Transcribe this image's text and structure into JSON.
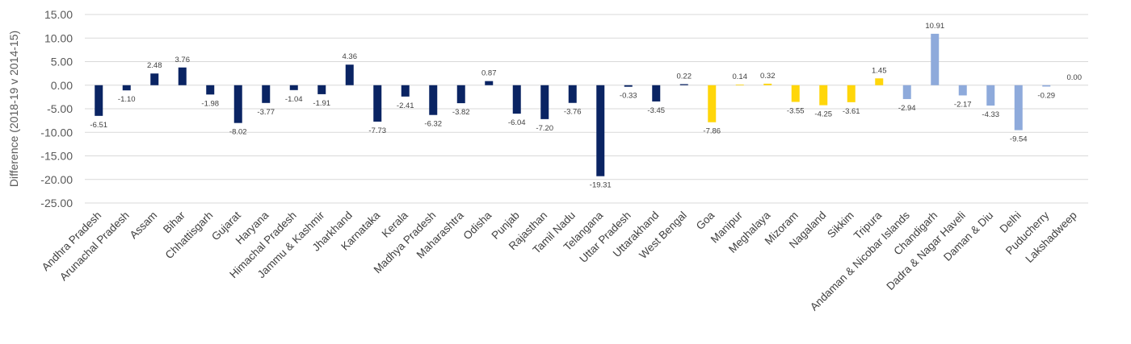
{
  "chart_data": {
    "type": "bar",
    "ylabel": "Difference (2018-19 v 2014-15)",
    "ylim": [
      -25,
      15
    ],
    "y_ticks": [
      15,
      10,
      5,
      0,
      -5,
      -10,
      -15,
      -20,
      -25
    ],
    "y_tick_labels": [
      "15.00",
      "10.00",
      "5.00",
      "0.00",
      "-5.00",
      "-10.00",
      "-15.00",
      "-20.00",
      "-25.00"
    ],
    "grid": true,
    "colors": {
      "states": "#0a2463",
      "northeast_goa": "#ffd60a",
      "union_territories": "#8eaadb"
    },
    "categories": [
      "Andhra Pradesh",
      "Arunachal Pradesh",
      "Assam",
      "Bihar",
      "Chhattisgarh",
      "Gujarat",
      "Haryana",
      "Himachal Pradesh",
      "Jammu & Kashmir",
      "Jharkhand",
      "Karnataka",
      "Kerala",
      "Madhya Pradesh",
      "Maharashtra",
      "Odisha",
      "Punjab",
      "Rajasthan",
      "Tamil Nadu",
      "Telangana",
      "Uttar Pradesh",
      "Uttarakhand",
      "West Bengal",
      "Goa",
      "Manipur",
      "Meghalaya",
      "Mizoram",
      "Nagaland",
      "Sikkim",
      "Tripura",
      "Andaman & Nicobar Islands",
      "Chandigarh",
      "Dadra & Nagar Haveli",
      "Daman & Diu",
      "Delhi",
      "Puducherry",
      "Lakshadweep"
    ],
    "values": [
      -6.51,
      -1.1,
      2.48,
      3.76,
      -1.98,
      -8.02,
      -3.77,
      -1.04,
      -1.91,
      4.36,
      -7.73,
      -2.41,
      -6.32,
      -3.82,
      0.87,
      -6.04,
      -7.2,
      -3.76,
      -19.31,
      -0.33,
      -3.45,
      0.22,
      -7.86,
      0.14,
      0.32,
      -3.55,
      -4.25,
      -3.61,
      1.45,
      -2.94,
      10.91,
      -2.17,
      -4.33,
      -9.54,
      -0.29,
      0.0
    ],
    "value_labels": [
      "-6.51",
      "-1.10",
      "2.48",
      "3.76",
      "-1.98",
      "-8.02",
      "-3.77",
      "-1.04",
      "-1.91",
      "4.36",
      "-7.73",
      "-2.41",
      "-6.32",
      "-3.82",
      "0.87",
      "-6.04",
      "-7.20",
      "-3.76",
      "-19.31",
      "-0.33",
      "-3.45",
      "0.22",
      "-7.86",
      "0.14",
      "0.32",
      "-3.55",
      "-4.25",
      "-3.61",
      "1.45",
      "-2.94",
      "10.91",
      "-2.17",
      "-4.33",
      "-9.54",
      "-0.29",
      "0.00"
    ],
    "groups": [
      "states",
      "states",
      "states",
      "states",
      "states",
      "states",
      "states",
      "states",
      "states",
      "states",
      "states",
      "states",
      "states",
      "states",
      "states",
      "states",
      "states",
      "states",
      "states",
      "states",
      "states",
      "states",
      "northeast_goa",
      "northeast_goa",
      "northeast_goa",
      "northeast_goa",
      "northeast_goa",
      "northeast_goa",
      "northeast_goa",
      "union_territories",
      "union_territories",
      "union_territories",
      "union_territories",
      "union_territories",
      "union_territories",
      "union_territories"
    ]
  }
}
